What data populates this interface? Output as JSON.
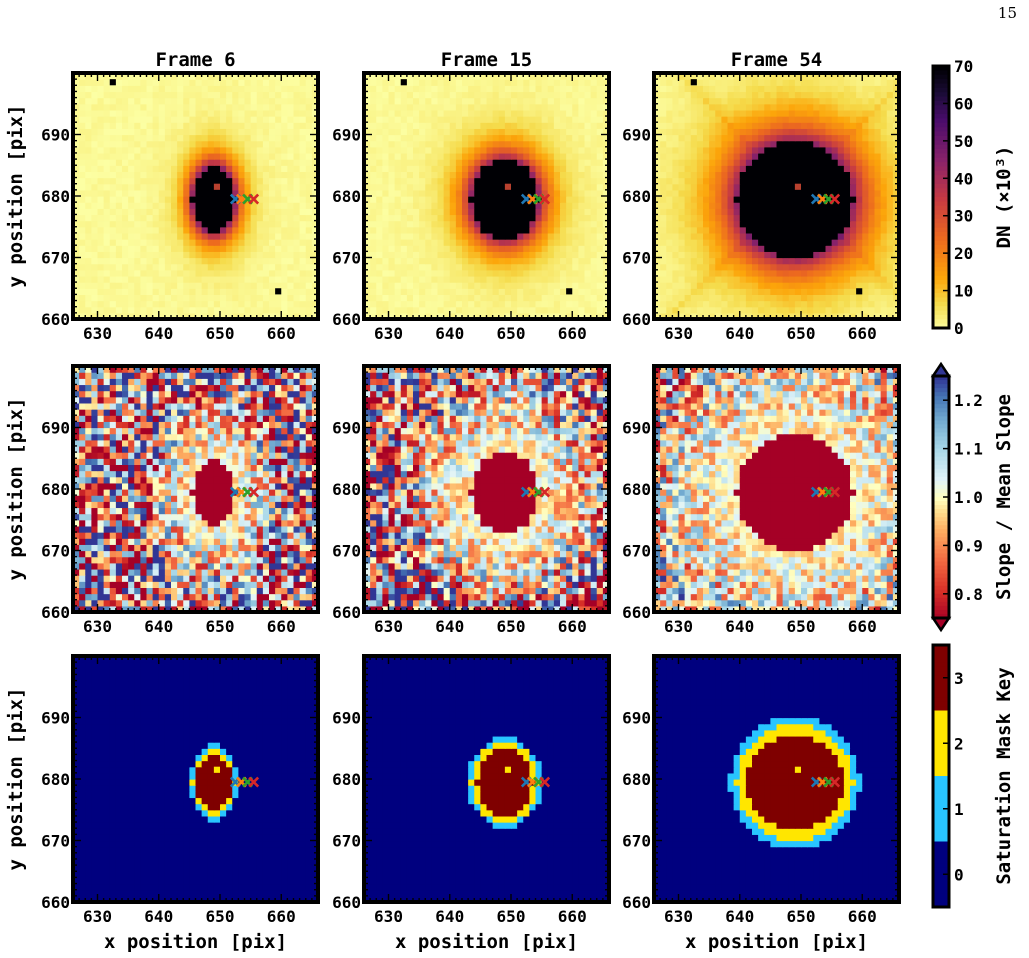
{
  "page_number": "15",
  "chart_data": {
    "type": "heatmap",
    "columns": [
      "Frame 6",
      "Frame 15",
      "Frame 54"
    ],
    "xlabel": "x position [pix]",
    "ylabel": "y position [pix]",
    "xlim": [
      626,
      666
    ],
    "ylim": [
      660,
      700
    ],
    "xticks": [
      630,
      640,
      650,
      660
    ],
    "yticks": [
      660,
      670,
      680,
      690
    ],
    "rows": [
      {
        "quantity": "DN",
        "colorbar_label": "DN (×10³)",
        "colormap": "inferno_r",
        "clim": [
          0,
          70
        ],
        "colorbar_ticks": [
          "0",
          "10",
          "20",
          "30",
          "40",
          "50",
          "60",
          "70"
        ],
        "saturated_core_radius": [
          {
            "frame": "Frame 6",
            "rx": 3.5,
            "ry": 5.5
          },
          {
            "frame": "Frame 15",
            "rx": 5.5,
            "ry": 6.5
          },
          {
            "frame": "Frame 54",
            "rx": 9.5,
            "ry": 9.5
          }
        ]
      },
      {
        "quantity": "Slope / Mean Slope",
        "colorbar_label": "Slope / Mean Slope",
        "colormap": "RdYlBu",
        "clim": [
          0.75,
          1.25
        ],
        "colorbar_ticks": [
          "0.8",
          "0.9",
          "1.0",
          "1.1",
          "1.2"
        ],
        "extend": "both"
      },
      {
        "quantity": "Saturation Mask Key",
        "colorbar_label": "Saturation Mask Key",
        "colormap": "jet",
        "clim": [
          -0.5,
          3.5
        ],
        "colorbar_ticks": [
          "0",
          "1",
          "2",
          "3"
        ]
      }
    ],
    "center": {
      "x": 649,
      "y": 681
    },
    "markers": [
      {
        "x": 652,
        "y": 679,
        "color": "#1f77b4",
        "symbol": "x"
      },
      {
        "x": 653,
        "y": 679,
        "color": "#ff7f0e",
        "symbol": "x"
      },
      {
        "x": 654,
        "y": 679,
        "color": "#2ca02c",
        "symbol": "x"
      },
      {
        "x": 655,
        "y": 679,
        "color": "#d62728",
        "symbol": "x"
      }
    ],
    "bad_pixels": [
      {
        "x": 632,
        "y": 698
      },
      {
        "x": 659,
        "y": 664
      }
    ],
    "colors": {
      "frame": "#000000"
    }
  }
}
